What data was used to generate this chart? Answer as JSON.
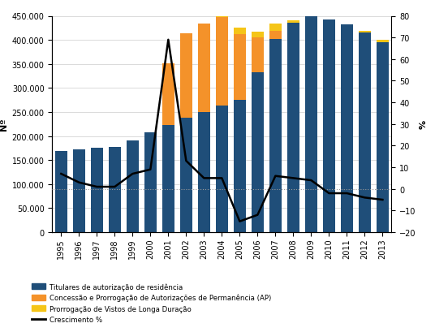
{
  "years": [
    1995,
    1996,
    1997,
    1998,
    1999,
    2000,
    2001,
    2002,
    2003,
    2004,
    2005,
    2006,
    2007,
    2008,
    2009,
    2010,
    2011,
    2012,
    2013
  ],
  "titulares": [
    168316,
    172912,
    175263,
    177834,
    191143,
    207587,
    223602,
    238929,
    249995,
    264000,
    274631,
    332137,
    401612,
    435144,
    451742,
    443055,
    432547,
    414610,
    395195
  ],
  "concessao": [
    0,
    0,
    0,
    0,
    0,
    0,
    126901,
    174558,
    183833,
    182726,
    136807,
    72880,
    16898,
    0,
    0,
    0,
    0,
    0,
    0
  ],
  "prorrogacao": [
    0,
    0,
    0,
    0,
    0,
    0,
    0,
    0,
    0,
    14100,
    14100,
    12500,
    16000,
    5500,
    0,
    0,
    0,
    4000,
    5000
  ],
  "crescimento": [
    7,
    3,
    1,
    1,
    7,
    9,
    69,
    13,
    5,
    5,
    -15,
    -12,
    6,
    5,
    4,
    -2,
    -2,
    -4,
    -5
  ],
  "color_titulares": "#1F4E79",
  "color_concessao": "#F4922A",
  "color_prorrogacao": "#F5C518",
  "color_line": "#000000",
  "ylabel_left": "Nº",
  "ylabel_right": "%",
  "ylim_left": [
    0,
    450000
  ],
  "ylim_right": [
    -20,
    80
  ],
  "yticks_left": [
    0,
    50000,
    100000,
    150000,
    200000,
    250000,
    300000,
    350000,
    400000,
    450000
  ],
  "yticks_right": [
    -20,
    -10,
    0,
    10,
    20,
    30,
    40,
    50,
    60,
    70,
    80
  ],
  "legend_titulares": "Titulares de autorização de residência",
  "legend_concessao": "Concessão e Prorrogação de Autorizações de Permanência (AP)",
  "legend_prorrogacao": "Prorrogação de Vistos de Longa Duração",
  "legend_line": "Crescimento %",
  "background_color": "#FFFFFF",
  "grid_color": "#CCCCCC"
}
